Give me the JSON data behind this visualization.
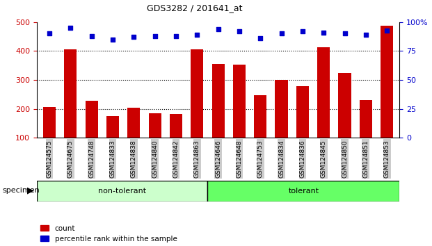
{
  "title": "GDS3282 / 201641_at",
  "categories": [
    "GSM124575",
    "GSM124675",
    "GSM124748",
    "GSM124833",
    "GSM124838",
    "GSM124840",
    "GSM124842",
    "GSM124863",
    "GSM124646",
    "GSM124648",
    "GSM124753",
    "GSM124834",
    "GSM124836",
    "GSM124845",
    "GSM124850",
    "GSM124851",
    "GSM124853"
  ],
  "bar_values": [
    207,
    407,
    228,
    175,
    205,
    185,
    182,
    407,
    355,
    352,
    248,
    300,
    278,
    413,
    325,
    230,
    488
  ],
  "scatter_percentiles": [
    90,
    95,
    88,
    85,
    87,
    88,
    88,
    89,
    94,
    92,
    86,
    90,
    92,
    91,
    90,
    89,
    93
  ],
  "non_tolerant_count": 8,
  "tolerant_count": 9,
  "bar_color": "#cc0000",
  "scatter_color": "#0000cc",
  "ylim_left": [
    100,
    500
  ],
  "ylim_right": [
    0,
    100
  ],
  "yticks_left": [
    100,
    200,
    300,
    400,
    500
  ],
  "yticks_right": [
    0,
    25,
    50,
    75,
    100
  ],
  "ytick_labels_right": [
    "0",
    "25",
    "50",
    "75",
    "100%"
  ],
  "grid_values": [
    200,
    300,
    400
  ],
  "non_tolerant_label": "non-tolerant",
  "tolerant_label": "tolerant",
  "non_tolerant_color": "#ccffcc",
  "tolerant_color": "#66ff66",
  "legend_count": "count",
  "legend_percentile": "percentile rank within the sample",
  "background_color": "#ffffff",
  "tick_bg_color": "#cccccc",
  "bar_width": 0.6
}
